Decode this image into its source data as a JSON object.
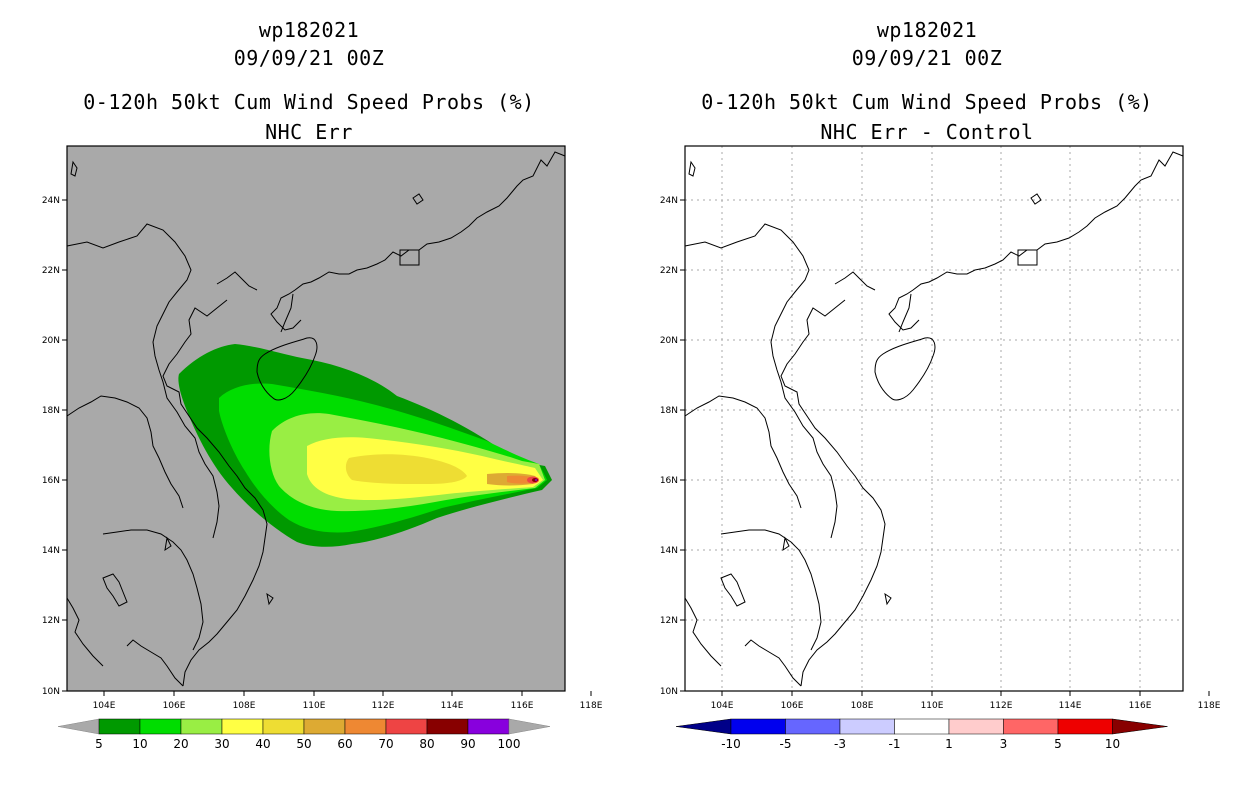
{
  "left_panel": {
    "title_line1": "wp182021",
    "title_line2": "09/09/21 00Z",
    "title_line3": "0-120h 50kt Cum Wind Speed Probs (%)",
    "title_line4": "NHC Err",
    "background_color": "#a9a9a9",
    "colorbar": {
      "labels": [
        "5",
        "10",
        "20",
        "30",
        "40",
        "50",
        "60",
        "70",
        "80",
        "90",
        "100"
      ],
      "colors": [
        "#009900",
        "#00dd00",
        "#99ee44",
        "#ffff44",
        "#eedd33",
        "#ddaa33",
        "#ee8833",
        "#ee4444",
        "#880000",
        "#8800dd"
      ],
      "end_color": "#a9a9a9"
    }
  },
  "right_panel": {
    "title_line1": "wp182021",
    "title_line2": "09/09/21 00Z",
    "title_line3": "0-120h 50kt Cum Wind Speed Probs (%)",
    "title_line4": "NHC Err - Control",
    "background_color": "#ffffff",
    "colorbar": {
      "labels": [
        "-10",
        "-5",
        "-3",
        "-1",
        "1",
        "3",
        "5",
        "10"
      ],
      "colors": [
        "#0000ee",
        "#6666ff",
        "#ccccff",
        "#ffffff",
        "#ffcccc",
        "#ff6666",
        "#ee0000"
      ],
      "low_end_color": "#000088",
      "high_end_color": "#880000"
    }
  },
  "axes": {
    "lon_labels": [
      "104E",
      "106E",
      "108E",
      "110E",
      "112E",
      "114E",
      "116E",
      "118E"
    ],
    "lat_labels": [
      "24N",
      "22N",
      "20N",
      "18N",
      "16N",
      "14N",
      "12N",
      "10N"
    ]
  }
}
